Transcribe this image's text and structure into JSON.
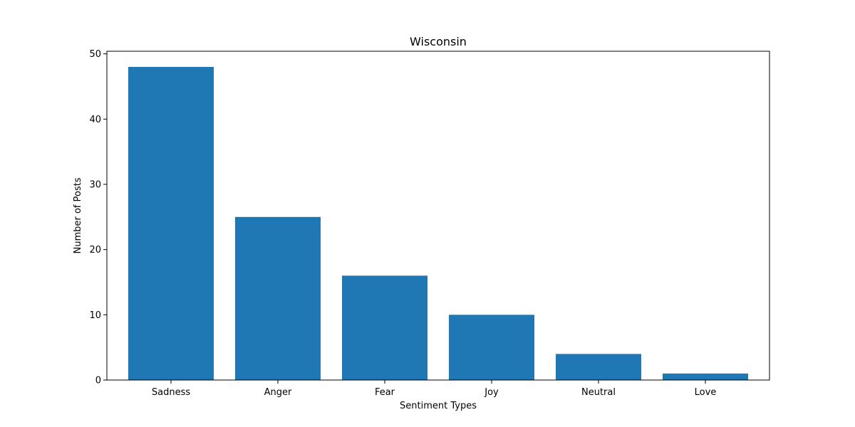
{
  "chart_data": {
    "type": "bar",
    "title": "Wisconsin",
    "xlabel": "Sentiment Types",
    "ylabel": "Number of Posts",
    "categories": [
      "Sadness",
      "Anger",
      "Fear",
      "Joy",
      "Neutral",
      "Love"
    ],
    "values": [
      48,
      25,
      16,
      10,
      4,
      1
    ],
    "ylim": [
      0,
      50.4
    ],
    "yticks": [
      "0",
      "10",
      "20",
      "30",
      "40",
      "50"
    ],
    "bar_color": "#1f77b4",
    "grid": false,
    "legend": "none"
  }
}
